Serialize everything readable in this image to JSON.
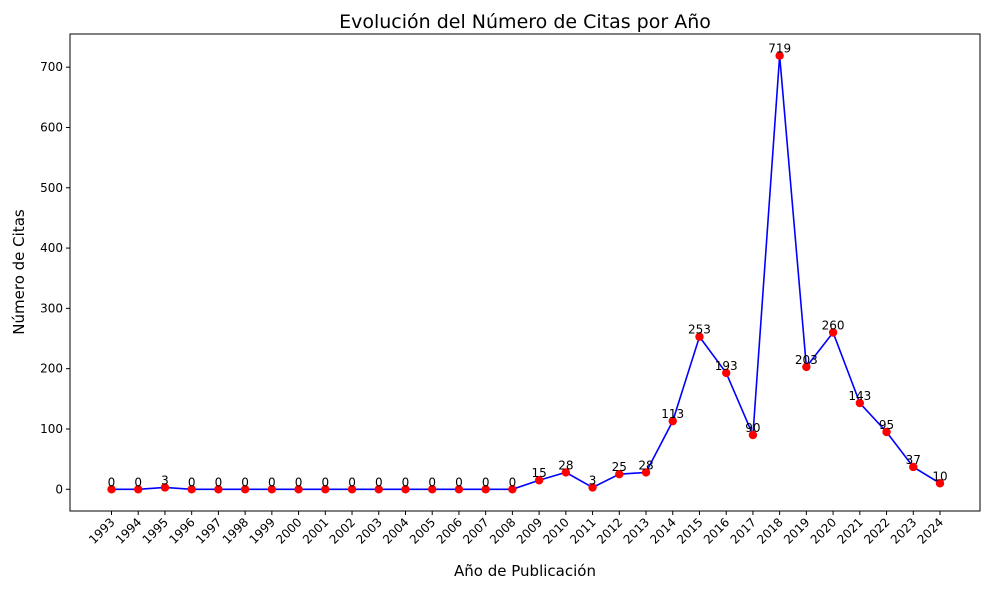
{
  "chart_data": {
    "type": "line",
    "title": "Evolución del Número de Citas por Año",
    "xlabel": "Año de Publicación",
    "ylabel": "Número de Citas",
    "categories": [
      "1993",
      "1994",
      "1995",
      "1996",
      "1997",
      "1998",
      "1999",
      "2000",
      "2001",
      "2002",
      "2003",
      "2004",
      "2005",
      "2006",
      "2007",
      "2008",
      "2009",
      "2010",
      "2011",
      "2012",
      "2013",
      "2014",
      "2015",
      "2016",
      "2017",
      "2018",
      "2019",
      "2020",
      "2021",
      "2022",
      "2023",
      "2024"
    ],
    "series": [
      {
        "values": [
          0,
          0,
          3,
          0,
          0,
          0,
          0,
          0,
          0,
          0,
          0,
          0,
          0,
          0,
          0,
          0,
          15,
          28,
          3,
          25,
          28,
          113,
          253,
          193,
          90,
          719,
          203,
          260,
          143,
          95,
          37,
          10
        ],
        "line_color": "#0000ff",
        "marker_color": "#ff0000"
      }
    ],
    "yticks": [
      0,
      100,
      200,
      300,
      400,
      500,
      600,
      700
    ],
    "ylim": [
      -36,
      755
    ],
    "grid": false,
    "legend": "none"
  }
}
